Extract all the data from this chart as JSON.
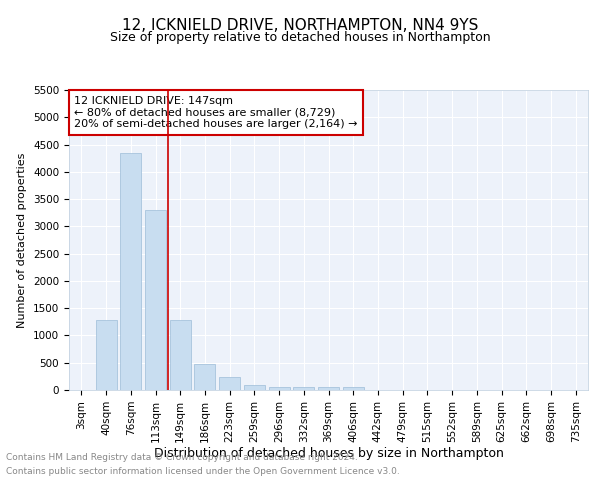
{
  "title": "12, ICKNIELD DRIVE, NORTHAMPTON, NN4 9YS",
  "subtitle": "Size of property relative to detached houses in Northampton",
  "xlabel": "Distribution of detached houses by size in Northampton",
  "ylabel": "Number of detached properties",
  "footer_line1": "Contains HM Land Registry data © Crown copyright and database right 2024.",
  "footer_line2": "Contains public sector information licensed under the Open Government Licence v3.0.",
  "categories": [
    "3sqm",
    "40sqm",
    "76sqm",
    "113sqm",
    "149sqm",
    "186sqm",
    "223sqm",
    "259sqm",
    "296sqm",
    "332sqm",
    "369sqm",
    "406sqm",
    "442sqm",
    "479sqm",
    "515sqm",
    "552sqm",
    "589sqm",
    "625sqm",
    "662sqm",
    "698sqm",
    "735sqm"
  ],
  "values": [
    0,
    1275,
    4350,
    3300,
    1275,
    480,
    230,
    100,
    60,
    50,
    50,
    50,
    0,
    0,
    0,
    0,
    0,
    0,
    0,
    0,
    0
  ],
  "bar_color": "#c8ddf0",
  "bar_edgecolor": "#9dbcd8",
  "vline_color": "#cc0000",
  "annotation_line1": "12 ICKNIELD DRIVE: 147sqm",
  "annotation_line2": "← 80% of detached houses are smaller (8,729)",
  "annotation_line3": "20% of semi-detached houses are larger (2,164) →",
  "annotation_box_color": "#ffffff",
  "annotation_box_edgecolor": "#cc0000",
  "ylim": [
    0,
    5500
  ],
  "yticks": [
    0,
    500,
    1000,
    1500,
    2000,
    2500,
    3000,
    3500,
    4000,
    4500,
    5000,
    5500
  ],
  "background_color": "#edf2fa",
  "grid_color": "#ffffff",
  "title_fontsize": 11,
  "subtitle_fontsize": 9,
  "xlabel_fontsize": 9,
  "ylabel_fontsize": 8,
  "tick_fontsize": 7.5,
  "annotation_fontsize": 8,
  "footer_fontsize": 6.5
}
